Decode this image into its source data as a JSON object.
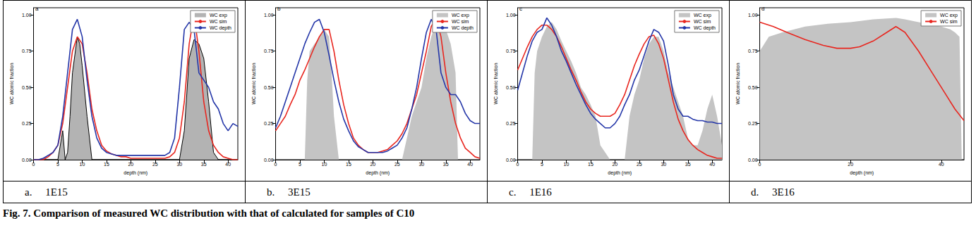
{
  "chart_data": [
    {
      "type": "line",
      "title": "a",
      "caption": "a.     1E15",
      "x_label": "depth (nm)",
      "y_label": "WC atomic fraction",
      "xlim": [
        0,
        42
      ],
      "xticks": [
        0,
        5,
        10,
        15,
        20,
        25,
        30,
        35,
        40
      ],
      "ylim": [
        0,
        1.05
      ],
      "yticks": [
        {
          "value": 0,
          "label": "0.00"
        },
        {
          "value": 0.25,
          "label": "0.25"
        },
        {
          "value": 0.5,
          "label": "0.50"
        },
        {
          "value": 0.75,
          "label": "0.75"
        },
        {
          "value": 1,
          "label": "1.00"
        }
      ],
      "grid": false,
      "legend": "upper right",
      "series": [
        {
          "name": "WC exp",
          "type": "area",
          "color": "#b3b3b3",
          "line_style": "solid",
          "x": [
            0,
            5,
            6,
            6.5,
            7,
            7.5,
            8,
            9,
            9.5,
            10,
            11,
            12,
            13,
            20,
            30,
            31,
            32,
            33,
            34,
            35,
            36,
            37,
            38,
            42
          ],
          "values": [
            0,
            0,
            0.2,
            0,
            0.05,
            0.3,
            0.6,
            0.85,
            0.8,
            0.65,
            0.3,
            0,
            0,
            0,
            0,
            0.2,
            0.7,
            0.83,
            0.8,
            0.7,
            0.4,
            0.05,
            0,
            0
          ]
        },
        {
          "name": "WC sim",
          "type": "line",
          "color": "#e8261f",
          "line_style": "solid",
          "x": [
            0,
            1,
            2,
            3,
            4,
            5,
            6,
            7,
            8,
            9,
            10,
            11,
            12,
            13,
            14,
            15,
            16,
            17,
            18,
            19,
            20,
            21,
            22,
            23,
            24,
            25,
            26,
            27,
            28,
            29,
            30,
            31,
            32,
            33,
            34,
            35,
            36,
            37,
            38,
            39,
            40,
            41,
            42
          ],
          "values": [
            0,
            0,
            0,
            0.02,
            0.05,
            0.1,
            0.25,
            0.5,
            0.75,
            0.85,
            0.8,
            0.6,
            0.35,
            0.2,
            0.1,
            0.06,
            0.04,
            0.03,
            0.02,
            0.02,
            0.01,
            0.01,
            0.01,
            0.01,
            0.01,
            0.01,
            0.01,
            0.01,
            0.02,
            0.05,
            0.15,
            0.4,
            0.8,
            1.0,
            0.75,
            0.4,
            0.2,
            0.1,
            0.05,
            0.02,
            0.01,
            0,
            0
          ]
        },
        {
          "name": "WC depth",
          "type": "line",
          "color": "#2436a8",
          "line_style": "solid",
          "x": [
            0,
            1,
            2,
            3,
            4,
            5,
            6,
            7,
            8,
            9,
            10,
            11,
            12,
            13,
            14,
            15,
            16,
            17,
            18,
            19,
            20,
            21,
            22,
            23,
            24,
            25,
            26,
            27,
            28,
            29,
            30,
            31,
            32,
            33,
            34,
            35,
            36,
            37,
            38,
            39,
            40,
            41,
            42
          ],
          "values": [
            0,
            0,
            0.01,
            0.03,
            0.05,
            0.1,
            0.3,
            0.6,
            0.9,
            0.97,
            0.85,
            0.55,
            0.3,
            0.15,
            0.08,
            0.05,
            0.04,
            0.03,
            0.03,
            0.03,
            0.03,
            0.03,
            0.03,
            0.03,
            0.03,
            0.03,
            0.03,
            0.03,
            0.05,
            0.15,
            0.5,
            0.9,
            0.95,
            0.9,
            0.6,
            0.55,
            0.5,
            0.4,
            0.35,
            0.25,
            0.2,
            0.25,
            0.23
          ]
        }
      ]
    },
    {
      "type": "line",
      "title": "b",
      "caption": "b.     3E15",
      "x_label": "depth (nm)",
      "y_label": "WC atomic fraction",
      "xlim": [
        0,
        42
      ],
      "xticks": [
        0,
        5,
        10,
        15,
        20,
        25,
        30,
        35,
        40
      ],
      "ylim": [
        0,
        1.05
      ],
      "yticks": [
        {
          "value": 0,
          "label": "0.00"
        },
        {
          "value": 0.25,
          "label": "0.25"
        },
        {
          "value": 0.5,
          "label": "0.50"
        },
        {
          "value": 0.75,
          "label": "0.75"
        },
        {
          "value": 1,
          "label": "1.00"
        }
      ],
      "grid": false,
      "legend": "upper right",
      "series": [
        {
          "name": "WC exp",
          "type": "area",
          "color": "#c4c4c4",
          "line_style": "none",
          "x": [
            0,
            6,
            6.5,
            7,
            8,
            9,
            10,
            11,
            11.5,
            12,
            13,
            26,
            27,
            28,
            29,
            30,
            31,
            32,
            33,
            34,
            35,
            36,
            37,
            37.5,
            42
          ],
          "values": [
            0,
            0,
            0.55,
            0.75,
            0.8,
            0.85,
            0.9,
            0.85,
            0.6,
            0.3,
            0,
            0,
            0.15,
            0.3,
            0.4,
            0.5,
            0.7,
            0.85,
            0.95,
            0.9,
            0.9,
            0.8,
            0.6,
            0,
            0
          ]
        },
        {
          "name": "WC sim",
          "type": "line",
          "color": "#e8261f",
          "line_style": "solid",
          "x": [
            0,
            1,
            2,
            3,
            4,
            5,
            6,
            7,
            8,
            9,
            10,
            11,
            12,
            13,
            14,
            15,
            16,
            17,
            18,
            19,
            20,
            21,
            22,
            23,
            24,
            25,
            26,
            27,
            28,
            29,
            30,
            31,
            32,
            33,
            34,
            35,
            36,
            37,
            38,
            39,
            40,
            41,
            42
          ],
          "values": [
            0.2,
            0.25,
            0.3,
            0.38,
            0.45,
            0.55,
            0.62,
            0.7,
            0.78,
            0.85,
            0.9,
            0.9,
            0.75,
            0.55,
            0.38,
            0.25,
            0.15,
            0.1,
            0.07,
            0.05,
            0.05,
            0.05,
            0.06,
            0.07,
            0.1,
            0.13,
            0.18,
            0.25,
            0.35,
            0.45,
            0.6,
            0.75,
            0.92,
            0.98,
            0.85,
            0.6,
            0.4,
            0.25,
            0.15,
            0.08,
            0.05,
            0.02,
            0.01
          ]
        },
        {
          "name": "WC depth",
          "type": "line",
          "color": "#2436a8",
          "line_style": "solid",
          "x": [
            0,
            1,
            2,
            3,
            4,
            5,
            6,
            7,
            8,
            9,
            10,
            11,
            12,
            13,
            14,
            15,
            16,
            17,
            18,
            19,
            20,
            21,
            22,
            23,
            24,
            25,
            26,
            27,
            28,
            29,
            30,
            31,
            32,
            33,
            34,
            35,
            36,
            37,
            38,
            39,
            40,
            41,
            42
          ],
          "values": [
            0.22,
            0.3,
            0.4,
            0.5,
            0.6,
            0.7,
            0.8,
            0.88,
            0.95,
            0.97,
            0.88,
            0.72,
            0.55,
            0.4,
            0.28,
            0.2,
            0.13,
            0.09,
            0.07,
            0.05,
            0.05,
            0.05,
            0.05,
            0.06,
            0.08,
            0.1,
            0.15,
            0.22,
            0.35,
            0.5,
            0.7,
            0.88,
            0.97,
            0.9,
            0.6,
            0.5,
            0.45,
            0.45,
            0.4,
            0.32,
            0.27,
            0.25,
            0.25
          ]
        }
      ]
    },
    {
      "type": "line",
      "title": "c",
      "caption": "c.     1E16",
      "x_label": "depth (nm)",
      "y_label": "WC atomic fraction",
      "xlim": [
        0,
        42
      ],
      "xticks": [
        0,
        5,
        10,
        15,
        20,
        25,
        30,
        35,
        40
      ],
      "ylim": [
        0,
        1.05
      ],
      "yticks": [
        {
          "value": 0,
          "label": "0.00"
        },
        {
          "value": 0.25,
          "label": "0.25"
        },
        {
          "value": 0.5,
          "label": "0.50"
        },
        {
          "value": 0.75,
          "label": "0.75"
        },
        {
          "value": 1,
          "label": "1.00"
        }
      ],
      "grid": false,
      "legend": "upper right",
      "series": [
        {
          "name": "WC exp",
          "type": "area",
          "color": "#c4c4c4",
          "line_style": "none",
          "x": [
            0,
            3,
            3.5,
            4,
            5,
            6,
            7,
            8,
            9,
            10,
            11,
            12,
            13,
            14,
            15,
            16,
            17,
            18,
            19,
            20,
            21,
            22,
            23,
            24,
            25,
            26,
            27,
            28,
            29,
            30,
            31,
            32,
            33,
            34,
            35,
            36,
            37,
            38,
            39,
            40,
            41,
            42
          ],
          "values": [
            0,
            0,
            0.6,
            0.75,
            0.85,
            0.92,
            0.95,
            0.9,
            0.82,
            0.75,
            0.68,
            0.6,
            0.5,
            0.45,
            0.38,
            0.3,
            0.1,
            0.05,
            0,
            0,
            0,
            0,
            0.3,
            0.45,
            0.55,
            0.7,
            0.8,
            0.85,
            0.85,
            0.75,
            0.6,
            0.5,
            0.4,
            0.3,
            0.15,
            0.1,
            0.1,
            0.2,
            0.35,
            0.45,
            0.3,
            0.1
          ]
        },
        {
          "name": "WC sim",
          "type": "line",
          "color": "#e8261f",
          "line_style": "solid",
          "x": [
            0,
            1,
            2,
            3,
            4,
            5,
            6,
            7,
            8,
            9,
            10,
            11,
            12,
            13,
            14,
            15,
            16,
            17,
            18,
            19,
            20,
            21,
            22,
            23,
            24,
            25,
            26,
            27,
            28,
            29,
            30,
            31,
            32,
            33,
            34,
            35,
            36,
            37,
            38,
            39,
            40,
            41,
            42
          ],
          "values": [
            0.62,
            0.7,
            0.78,
            0.85,
            0.9,
            0.93,
            0.93,
            0.9,
            0.85,
            0.78,
            0.7,
            0.62,
            0.55,
            0.47,
            0.4,
            0.35,
            0.32,
            0.3,
            0.3,
            0.3,
            0.32,
            0.38,
            0.45,
            0.55,
            0.65,
            0.73,
            0.8,
            0.85,
            0.86,
            0.8,
            0.7,
            0.55,
            0.4,
            0.28,
            0.2,
            0.14,
            0.1,
            0.07,
            0.05,
            0.03,
            0.02,
            0.01,
            0.01
          ]
        },
        {
          "name": "WC depth",
          "type": "line",
          "color": "#2436a8",
          "line_style": "solid",
          "x": [
            0,
            1,
            2,
            3,
            4,
            5,
            6,
            7,
            8,
            9,
            10,
            11,
            12,
            13,
            14,
            15,
            16,
            17,
            18,
            19,
            20,
            21,
            22,
            23,
            24,
            25,
            26,
            27,
            28,
            29,
            30,
            31,
            32,
            33,
            34,
            35,
            36,
            37,
            38,
            39,
            40,
            41,
            42
          ],
          "values": [
            0.48,
            0.6,
            0.72,
            0.82,
            0.88,
            0.9,
            0.98,
            0.93,
            0.85,
            0.75,
            0.68,
            0.6,
            0.52,
            0.45,
            0.38,
            0.32,
            0.28,
            0.25,
            0.22,
            0.22,
            0.25,
            0.3,
            0.38,
            0.45,
            0.55,
            0.62,
            0.72,
            0.82,
            0.9,
            0.88,
            0.82,
            0.65,
            0.45,
            0.35,
            0.3,
            0.3,
            0.28,
            0.27,
            0.27,
            0.26,
            0.26,
            0.25,
            0.25
          ]
        }
      ]
    },
    {
      "type": "line",
      "title": "d",
      "caption": "d.     3E16",
      "x_label": "depth (nm)",
      "y_label": "WC atomic fraction",
      "xlim": [
        0,
        45
      ],
      "xticks": [
        0,
        20,
        40
      ],
      "ylim": [
        0,
        1.05
      ],
      "yticks": [
        {
          "value": 0,
          "label": "0.00"
        },
        {
          "value": 0.25,
          "label": "0.25"
        },
        {
          "value": 0.5,
          "label": "0.50"
        },
        {
          "value": 0.75,
          "label": "0.75"
        },
        {
          "value": 1,
          "label": "1.00"
        }
      ],
      "grid": false,
      "legend": "upper right",
      "series": [
        {
          "name": "WC exp",
          "type": "area",
          "color": "#c4c4c4",
          "line_style": "none",
          "x": [
            0,
            2,
            5,
            10,
            15,
            20,
            25,
            30,
            32,
            35,
            38,
            40,
            42,
            43,
            44,
            44.5,
            45
          ],
          "values": [
            0.75,
            0.85,
            0.88,
            0.92,
            0.94,
            0.95,
            0.97,
            0.98,
            0.97,
            0.95,
            0.93,
            0.92,
            0.9,
            0.88,
            0.85,
            0,
            0
          ]
        },
        {
          "name": "WC sim",
          "type": "line",
          "color": "#e8261f",
          "line_style": "solid",
          "x": [
            0,
            3,
            6,
            10,
            14,
            17,
            20,
            22,
            25,
            28,
            30,
            32,
            35,
            38,
            41,
            43,
            45
          ],
          "values": [
            0.95,
            0.92,
            0.88,
            0.83,
            0.79,
            0.77,
            0.77,
            0.78,
            0.82,
            0.88,
            0.92,
            0.88,
            0.75,
            0.6,
            0.45,
            0.35,
            0.27
          ]
        }
      ]
    }
  ],
  "figure_caption": "Fig. 7. Comparison of measured WC distribution with that of calculated for samples of C10"
}
